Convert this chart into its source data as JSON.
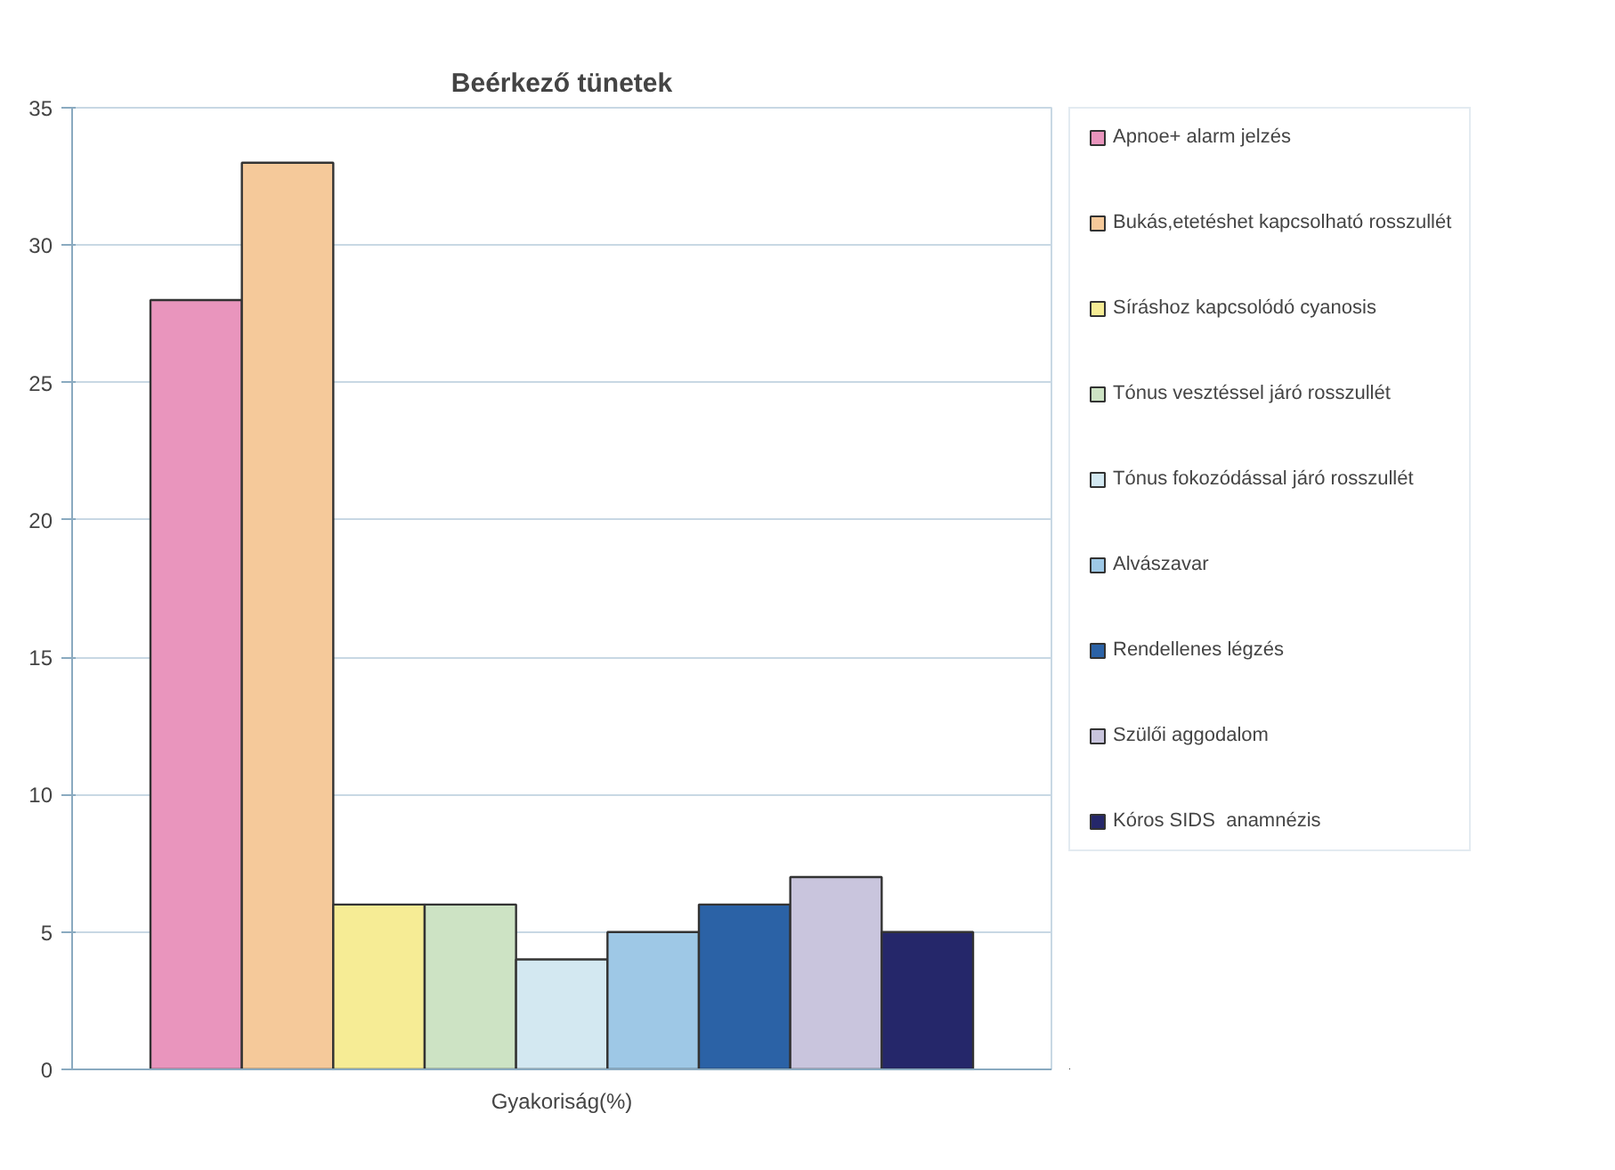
{
  "chart_data": {
    "type": "bar",
    "title": "Beérkező tünetek",
    "categories": [
      "Gyakoriság(%)"
    ],
    "series": [
      {
        "name": "Apnoe+ alarm jelzés",
        "color": "#e995bd",
        "values": [
          28
        ]
      },
      {
        "name": "Bukás,etetéshet kapcsolható rosszullét",
        "color": "#f5c99a",
        "values": [
          33
        ]
      },
      {
        "name": "Síráshoz kapcsolódó cyanosis",
        "color": "#f6ec95",
        "values": [
          6
        ]
      },
      {
        "name": "Tónus vesztéssel járó rosszullét",
        "color": "#cde3c4",
        "values": [
          6
        ]
      },
      {
        "name": "Tónus fokozódással járó rosszullét",
        "color": "#d3e8f1",
        "values": [
          4
        ]
      },
      {
        "name": "Alvászavar",
        "color": "#9ec8e6",
        "values": [
          5
        ]
      },
      {
        "name": "Rendellenes légzés",
        "color": "#2b62a6",
        "values": [
          6
        ]
      },
      {
        "name": "Szülői aggodalom",
        "color": "#c9c5dd",
        "values": [
          7
        ]
      },
      {
        "name": "Kóros SIDS  anamnézis",
        "color": "#25276a",
        "values": [
          5
        ]
      }
    ],
    "ylim": [
      0,
      35
    ],
    "yticks": [
      0,
      5,
      10,
      15,
      20,
      25,
      30,
      35
    ],
    "grid": "y",
    "legend": "right"
  }
}
